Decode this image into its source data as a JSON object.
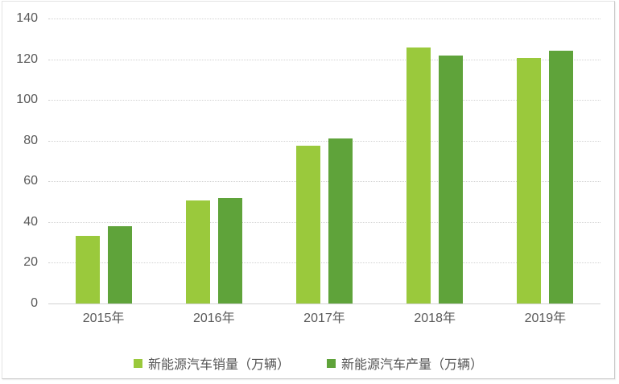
{
  "chart_data": {
    "type": "bar",
    "title": "",
    "categories": [
      "2015年",
      "2016年",
      "2017年",
      "2018年",
      "2019年"
    ],
    "series": [
      {
        "name": "新能源汽车销量（万辆）",
        "color": "#9ac93c",
        "values": [
          33.1,
          50.7,
          77.7,
          125.6,
          120.6
        ]
      },
      {
        "name": "新能源汽车产量（万辆）",
        "color": "#5fa33a",
        "values": [
          37.9,
          51.7,
          81.0,
          122.0,
          124.2
        ]
      }
    ],
    "ylim": [
      0,
      140
    ],
    "yticks": [
      0,
      20,
      40,
      60,
      80,
      100,
      120,
      140
    ],
    "xlabel": "",
    "ylabel": "",
    "grid": "horizontal-dotted",
    "legend_position": "bottom",
    "colors": {
      "axis_text": "#595959",
      "gridline": "#d2d2d2",
      "background": "#ffffff"
    }
  }
}
